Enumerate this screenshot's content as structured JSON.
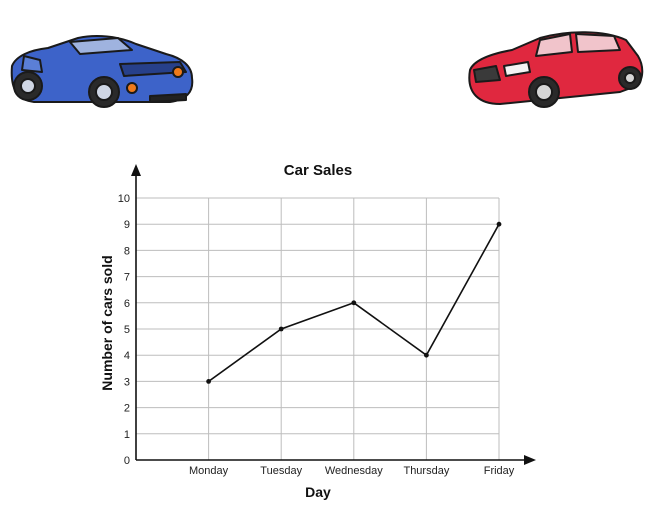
{
  "chart_data": {
    "type": "line",
    "title": "Car Sales",
    "xlabel": "Day",
    "ylabel": "Number of cars sold",
    "categories": [
      "Monday",
      "Tuesday",
      "Wednesday",
      "Thursday",
      "Friday"
    ],
    "values": [
      3,
      5,
      6,
      4,
      9
    ],
    "ylim": [
      0,
      10
    ],
    "yticks": [
      0,
      1,
      2,
      3,
      4,
      5,
      6,
      7,
      8,
      9,
      10
    ],
    "grid": true,
    "legend": "none",
    "colors": {
      "line": "#111111",
      "grid": "#bdbdbd",
      "axis": "#111111"
    }
  },
  "illustrations": {
    "left_car": {
      "icon": "blue-sports-car-icon",
      "color": "#3d63c9"
    },
    "right_car": {
      "icon": "red-sedan-car-icon",
      "color": "#e0283f"
    }
  }
}
